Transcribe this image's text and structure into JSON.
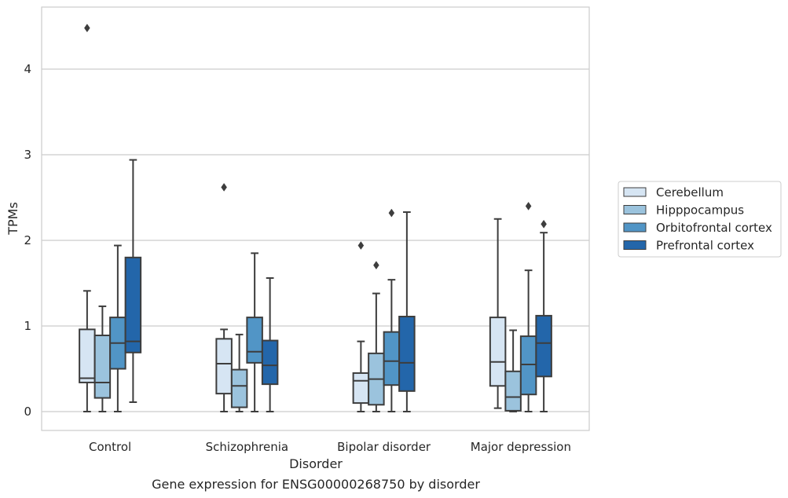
{
  "chart_data": {
    "type": "boxplot",
    "title": "Gene expression for ENSG00000268750 by disorder",
    "xlabel": "Disorder",
    "ylabel": "TPMs",
    "ylim": [
      -0.22,
      4.75
    ],
    "yticks": [
      0,
      1,
      2,
      3,
      4
    ],
    "grid": true,
    "legend_position": "right",
    "categories": [
      "Control",
      "Schizophrenia",
      "Bipolar disorder",
      "Major depression"
    ],
    "series": [
      {
        "name": "Cerebellum",
        "color": "#d6e5f3",
        "boxes": [
          {
            "whislo": 0.0,
            "q1": 0.34,
            "med": 0.39,
            "q3": 0.96,
            "whishi": 1.41,
            "fliers": [
              4.48
            ]
          },
          {
            "whislo": 0.0,
            "q1": 0.21,
            "med": 0.56,
            "q3": 0.85,
            "whishi": 0.96,
            "fliers": [
              2.62
            ]
          },
          {
            "whislo": 0.0,
            "q1": 0.1,
            "med": 0.36,
            "q3": 0.45,
            "whishi": 0.82,
            "fliers": [
              1.94
            ]
          },
          {
            "whislo": 0.04,
            "q1": 0.3,
            "med": 0.58,
            "q3": 1.1,
            "whishi": 2.25,
            "fliers": []
          }
        ]
      },
      {
        "name": "Hipppocampus",
        "color": "#9bc3dd",
        "boxes": [
          {
            "whislo": 0.0,
            "q1": 0.16,
            "med": 0.34,
            "q3": 0.89,
            "whishi": 1.23,
            "fliers": []
          },
          {
            "whislo": 0.0,
            "q1": 0.05,
            "med": 0.3,
            "q3": 0.49,
            "whishi": 0.9,
            "fliers": []
          },
          {
            "whislo": 0.0,
            "q1": 0.08,
            "med": 0.38,
            "q3": 0.68,
            "whishi": 1.38,
            "fliers": [
              1.71
            ]
          },
          {
            "whislo": 0.0,
            "q1": 0.01,
            "med": 0.17,
            "q3": 0.47,
            "whishi": 0.95,
            "fliers": []
          }
        ]
      },
      {
        "name": "Orbitofrontal cortex",
        "color": "#5195c6",
        "boxes": [
          {
            "whislo": 0.0,
            "q1": 0.5,
            "med": 0.8,
            "q3": 1.1,
            "whishi": 1.94,
            "fliers": []
          },
          {
            "whislo": 0.0,
            "q1": 0.57,
            "med": 0.7,
            "q3": 1.1,
            "whishi": 1.85,
            "fliers": []
          },
          {
            "whislo": 0.0,
            "q1": 0.31,
            "med": 0.59,
            "q3": 0.93,
            "whishi": 1.54,
            "fliers": [
              2.32
            ]
          },
          {
            "whislo": 0.0,
            "q1": 0.2,
            "med": 0.55,
            "q3": 0.88,
            "whishi": 1.65,
            "fliers": [
              2.4
            ]
          }
        ]
      },
      {
        "name": "Prefrontal cortex",
        "color": "#2366aa",
        "boxes": [
          {
            "whislo": 0.11,
            "q1": 0.69,
            "med": 0.82,
            "q3": 1.8,
            "whishi": 2.94,
            "fliers": []
          },
          {
            "whislo": 0.0,
            "q1": 0.32,
            "med": 0.54,
            "q3": 0.83,
            "whishi": 1.56,
            "fliers": []
          },
          {
            "whislo": 0.0,
            "q1": 0.24,
            "med": 0.57,
            "q3": 1.11,
            "whishi": 2.33,
            "fliers": []
          },
          {
            "whislo": 0.0,
            "q1": 0.41,
            "med": 0.8,
            "q3": 1.12,
            "whishi": 2.09,
            "fliers": [
              2.19
            ]
          }
        ]
      }
    ]
  }
}
